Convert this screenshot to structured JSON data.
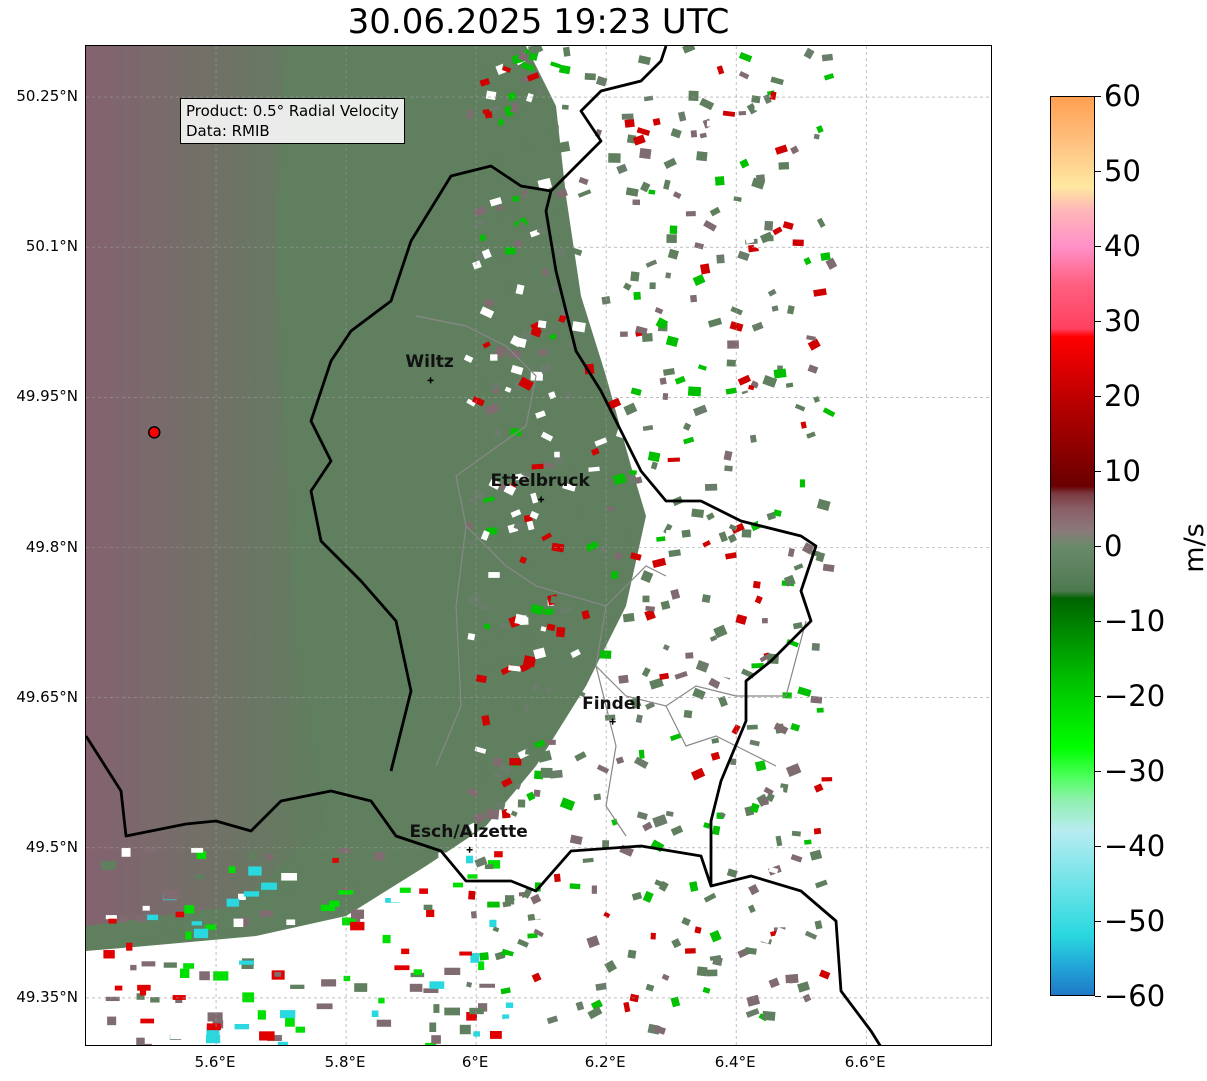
{
  "title": "30.06.2025 19:23 UTC",
  "info_box": {
    "product": "Product: 0.5° Radial Velocity",
    "data": "Data: RMIB"
  },
  "map": {
    "lon_range": [
      5.4,
      6.795
    ],
    "lat_range": [
      49.301,
      50.301
    ],
    "lat_ticks": [
      {
        "v": 50.25,
        "label": "50.25°N"
      },
      {
        "v": 50.1,
        "label": "50.1°N"
      },
      {
        "v": 49.95,
        "label": "49.95°N"
      },
      {
        "v": 49.8,
        "label": "49.8°N"
      },
      {
        "v": 49.65,
        "label": "49.65°N"
      },
      {
        "v": 49.5,
        "label": "49.5°N"
      },
      {
        "v": 49.35,
        "label": "49.35°N"
      }
    ],
    "lon_ticks": [
      {
        "v": 5.6,
        "label": "5.6°E"
      },
      {
        "v": 5.8,
        "label": "5.8°E"
      },
      {
        "v": 6.0,
        "label": "6°E"
      },
      {
        "v": 6.2,
        "label": "6.2°E"
      },
      {
        "v": 6.4,
        "label": "6.4°E"
      },
      {
        "v": 6.6,
        "label": "6.6°E"
      }
    ],
    "cities": [
      {
        "name": "Wiltz",
        "lon": 5.93,
        "lat": 49.967
      },
      {
        "name": "Ettelbruck",
        "lon": 6.1,
        "lat": 49.848
      },
      {
        "name": "Findel",
        "lon": 6.21,
        "lat": 49.626
      },
      {
        "name": "Esch/Alzette",
        "lon": 5.99,
        "lat": 49.498
      }
    ],
    "radar_site": {
      "lon": 5.505,
      "lat": 49.915,
      "color": "#ff0000"
    }
  },
  "colorbar": {
    "label": "m/s",
    "min": -60,
    "max": 60,
    "ticks": [
      "60",
      "50",
      "40",
      "30",
      "20",
      "10",
      "0",
      "−10",
      "−20",
      "−30",
      "−40",
      "−50",
      "−60"
    ],
    "stops": [
      {
        "v": -60,
        "c": "#1f78c8"
      },
      {
        "v": -56,
        "c": "#22a8d8"
      },
      {
        "v": -52,
        "c": "#2ad8e0"
      },
      {
        "v": -45,
        "c": "#70e4e8"
      },
      {
        "v": -38,
        "c": "#b8ecf0"
      },
      {
        "v": -34,
        "c": "#90f0b0"
      },
      {
        "v": -31,
        "c": "#50ff60"
      },
      {
        "v": -27,
        "c": "#00ff00"
      },
      {
        "v": -18,
        "c": "#00c000"
      },
      {
        "v": -7,
        "c": "#006400"
      },
      {
        "v": -6,
        "c": "#4e7a50"
      },
      {
        "v": 0,
        "c": "#6a8a6a"
      },
      {
        "v": 2,
        "c": "#8a7a7a"
      },
      {
        "v": 5,
        "c": "#8a5e66"
      },
      {
        "v": 7,
        "c": "#7a3a40"
      },
      {
        "v": 8,
        "c": "#6a0000"
      },
      {
        "v": 18,
        "c": "#b00000"
      },
      {
        "v": 28,
        "c": "#ff0000"
      },
      {
        "v": 29,
        "c": "#ff4060"
      },
      {
        "v": 35,
        "c": "#ff6080"
      },
      {
        "v": 40,
        "c": "#ff90c8"
      },
      {
        "v": 45,
        "c": "#ffb8b8"
      },
      {
        "v": 48,
        "c": "#ffe8a0"
      },
      {
        "v": 54,
        "c": "#ffc080"
      },
      {
        "v": 60,
        "c": "#ffa050"
      }
    ]
  }
}
